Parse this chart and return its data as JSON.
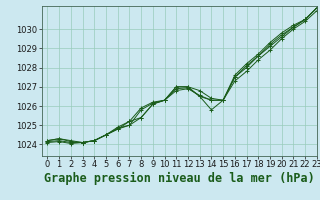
{
  "bg_color": "#cce8f0",
  "plot_bg_color": "#cce8f0",
  "grid_color": "#99ccbb",
  "line_color": "#1a5c1a",
  "title": "Graphe pression niveau de la mer (hPa)",
  "xlim": [
    -0.5,
    23
  ],
  "ylim": [
    1023.4,
    1031.2
  ],
  "yticks": [
    1024,
    1025,
    1026,
    1027,
    1028,
    1029,
    1030
  ],
  "xticks": [
    0,
    1,
    2,
    3,
    4,
    5,
    6,
    7,
    8,
    9,
    10,
    11,
    12,
    13,
    14,
    15,
    16,
    17,
    18,
    19,
    20,
    21,
    22,
    23
  ],
  "series": [
    [
      1024.2,
      1024.3,
      1024.2,
      1024.1,
      1024.2,
      1024.5,
      1024.8,
      1025.2,
      1025.4,
      1026.1,
      1026.3,
      1026.9,
      1026.95,
      1026.5,
      1026.3,
      1026.3,
      1027.5,
      1028.0,
      1028.6,
      1029.1,
      1029.6,
      1030.1,
      1030.5,
      1031.1
    ],
    [
      1024.2,
      1024.3,
      1024.15,
      1024.1,
      1024.2,
      1024.5,
      1024.8,
      1025.0,
      1025.4,
      1026.1,
      1026.3,
      1026.8,
      1026.9,
      1026.55,
      1026.3,
      1026.3,
      1027.3,
      1027.8,
      1028.4,
      1028.9,
      1029.5,
      1030.0,
      1030.4,
      1030.95
    ],
    [
      1024.15,
      1024.2,
      1024.1,
      1024.1,
      1024.2,
      1024.5,
      1024.85,
      1025.0,
      1025.8,
      1026.15,
      1026.3,
      1027.0,
      1027.0,
      1026.5,
      1025.8,
      1026.3,
      1027.5,
      1028.1,
      1028.6,
      1029.2,
      1029.7,
      1030.1,
      1030.5,
      1031.1
    ],
    [
      1024.1,
      1024.15,
      1024.05,
      1024.1,
      1024.2,
      1024.5,
      1024.9,
      1025.2,
      1025.9,
      1026.2,
      1026.3,
      1027.0,
      1027.0,
      1026.8,
      1026.4,
      1026.3,
      1027.6,
      1028.2,
      1028.7,
      1029.3,
      1029.8,
      1030.2,
      1030.5,
      1031.1
    ]
  ],
  "marker": "+",
  "marker_size": 3.5,
  "line_width": 0.7,
  "title_fontsize": 8.5,
  "tick_fontsize": 6.0,
  "title_color": "#1a5c1a"
}
